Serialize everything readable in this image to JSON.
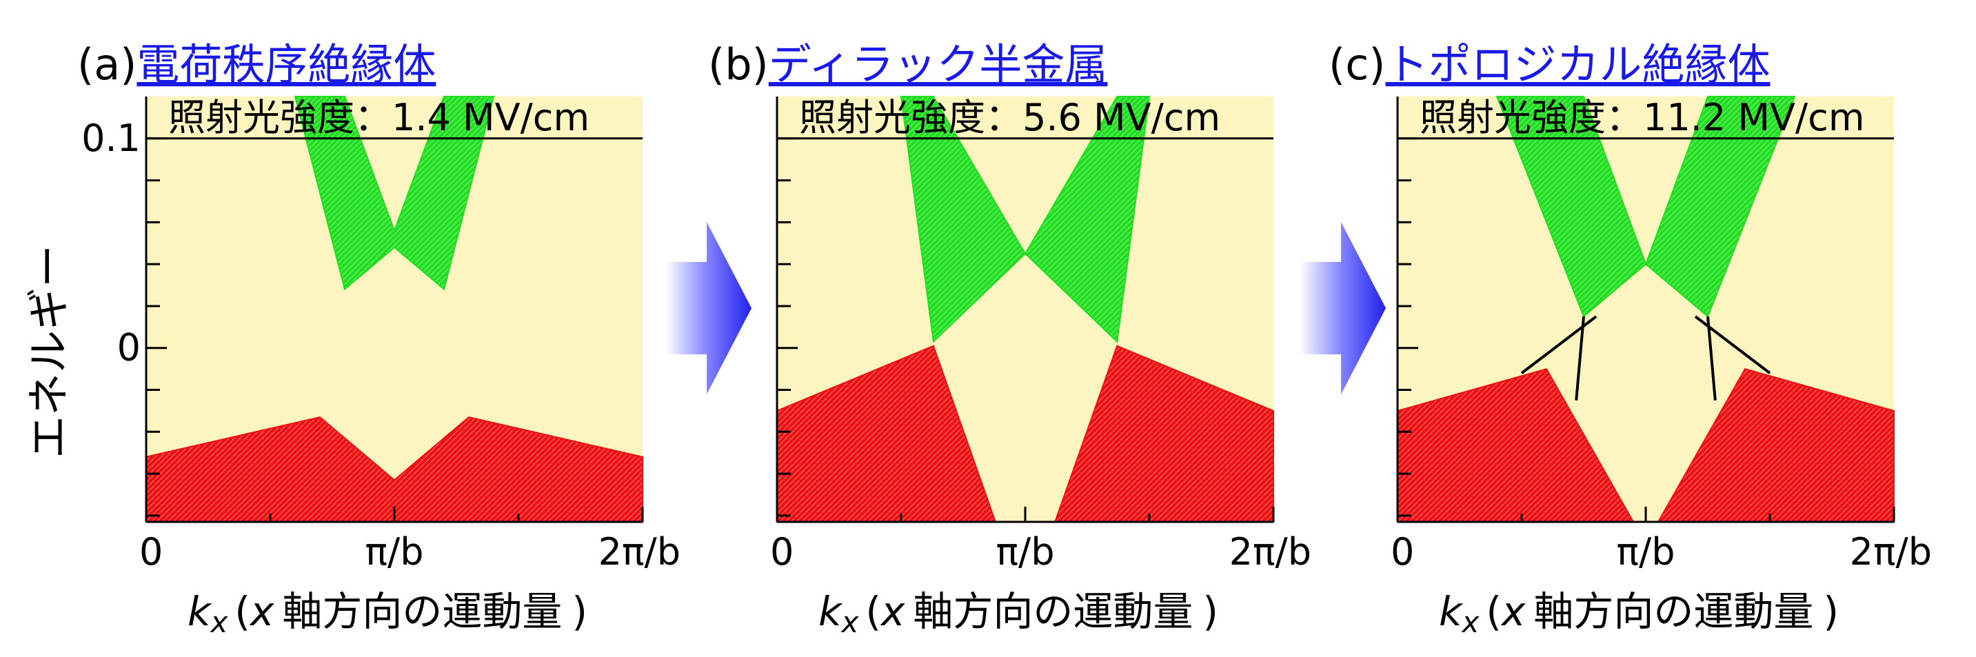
{
  "y_axis_label": "エネルギー",
  "x_axis_label_var": "k",
  "x_axis_label_sub": "x",
  "x_axis_label_open": "(",
  "x_axis_label_x": "x",
  "x_axis_label_text": "軸方向の運動量",
  "x_axis_label_close": ")",
  "x_ticks": [
    "0",
    "π/b",
    "2π/b"
  ],
  "y_ticks": [
    "0.1",
    "0"
  ],
  "colors": {
    "background": "#fdf5c0",
    "conduction_band": "#22dd22",
    "valence_band": "#ee1111",
    "edge_state": "#000000",
    "arrow": "#2222ee",
    "title_link": "#1a1ae6"
  },
  "arrow_icon": "right-arrow-icon",
  "chart_data": [
    {
      "type": "area",
      "panel": "(a)",
      "title": "電荷秩序絶縁体",
      "intensity_label": "照射光強度：",
      "intensity_value": "1.4 MV/cm",
      "xlim": [
        0,
        2
      ],
      "x_unit": "π/b",
      "ylim": [
        -0.083,
        0.12
      ],
      "series": [
        {
          "band": "conduction",
          "x": [
            0.6,
            0.8,
            1.0,
            1.2,
            1.4
          ],
          "lower": [
            0.12,
            0.028,
            0.048,
            0.028,
            0.12
          ],
          "upper": [
            0.12,
            0.12,
            0.056,
            0.12,
            0.12
          ]
        },
        {
          "band": "valence",
          "x": [
            0.0,
            0.7,
            1.0,
            1.3,
            2.0
          ],
          "upper": [
            -0.052,
            -0.033,
            -0.063,
            -0.033,
            -0.052
          ],
          "lower": [
            -0.083,
            -0.083,
            -0.083,
            -0.083,
            -0.083
          ]
        }
      ]
    },
    {
      "type": "area",
      "panel": "(b)",
      "title": "ディラック半金属",
      "intensity_label": "照射光強度：",
      "intensity_value": "5.6 MV/cm",
      "xlim": [
        0,
        2
      ],
      "x_unit": "π/b",
      "ylim": [
        -0.083,
        0.12
      ],
      "series": [
        {
          "band": "conduction",
          "x": [
            0.5,
            0.63,
            1.0,
            1.37,
            1.5
          ],
          "lower": [
            0.12,
            0.003,
            0.045,
            0.003,
            0.12
          ],
          "upper": [
            0.12,
            0.12,
            0.045,
            0.12,
            0.12
          ]
        },
        {
          "band": "valence",
          "x": [
            0.0,
            0.63,
            0.88,
            1.12,
            1.37,
            2.0
          ],
          "upper": [
            -0.03,
            0.001,
            -0.083,
            -0.083,
            0.001,
            -0.03
          ],
          "lower": [
            -0.083,
            -0.083,
            -0.083,
            -0.083,
            -0.083,
            -0.083
          ]
        }
      ]
    },
    {
      "type": "area",
      "panel": "(c)",
      "title": "トポロジカル絶縁体",
      "intensity_label": "照射光強度：",
      "intensity_value": "11.2 MV/cm",
      "xlim": [
        0,
        2
      ],
      "x_unit": "π/b",
      "ylim": [
        -0.083,
        0.12
      ],
      "series": [
        {
          "band": "conduction",
          "x": [
            0.4,
            0.75,
            1.0,
            1.25,
            1.6
          ],
          "lower": [
            0.12,
            0.015,
            0.04,
            0.015,
            0.12
          ],
          "upper": [
            0.12,
            0.12,
            0.04,
            0.12,
            0.12
          ]
        },
        {
          "band": "valence",
          "x": [
            0.0,
            0.6,
            0.95,
            1.05,
            1.4,
            2.0
          ],
          "upper": [
            -0.03,
            -0.01,
            -0.083,
            -0.083,
            -0.01,
            -0.03
          ],
          "lower": [
            -0.083,
            -0.083,
            -0.083,
            -0.083,
            -0.083,
            -0.083
          ]
        },
        {
          "band": "edge",
          "x": [
            0.5,
            0.8
          ],
          "y": [
            -0.012,
            0.015
          ]
        },
        {
          "band": "edge",
          "x": [
            0.75,
            0.72
          ],
          "y": [
            0.015,
            -0.025
          ]
        },
        {
          "band": "edge",
          "x": [
            1.2,
            1.5
          ],
          "y": [
            0.015,
            -0.012
          ]
        },
        {
          "band": "edge",
          "x": [
            1.28,
            1.25
          ],
          "y": [
            -0.025,
            0.015
          ]
        }
      ]
    }
  ]
}
